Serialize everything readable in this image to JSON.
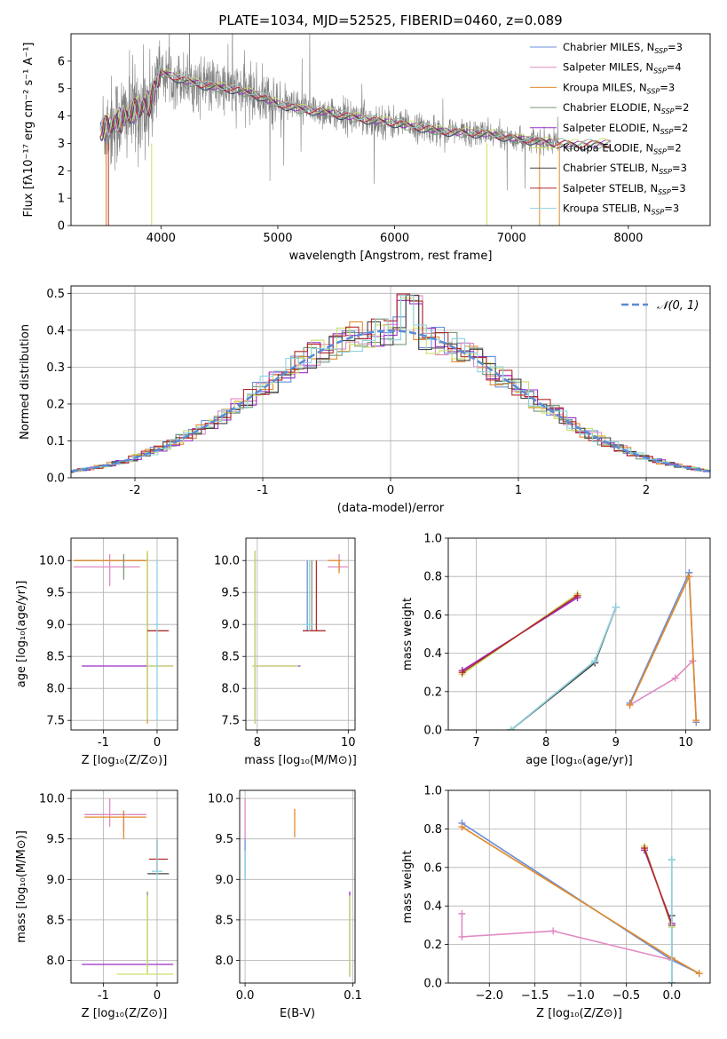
{
  "title": "PLATE=1034, MJD=52525, FIBERID=0460, z=0.089",
  "model_colors": [
    "#6a8fd8",
    "#e08ac4",
    "#e28a2b",
    "#7a9a78",
    "#9a2fc8",
    "#c9e06a",
    "#444444",
    "#b22a2a",
    "#8ed3e0"
  ],
  "chart_data": [
    {
      "id": "spectrum",
      "type": "line",
      "xlabel": "wavelength [Angstrom, rest frame]",
      "ylabel": "Flux [fλ10⁻¹⁷ erg cm⁻² s⁻¹ A⁻¹]",
      "xlim": [
        3230,
        8700
      ],
      "ylim": [
        0,
        7
      ],
      "xticks": [
        4000,
        5000,
        6000,
        7000,
        8000
      ],
      "yticks": [
        0,
        1,
        2,
        3,
        4,
        5,
        6
      ],
      "grid": false,
      "legend_position": "top-right",
      "legend": [
        {
          "label": "Chabrier MILES, N",
          "sub": "SSP",
          "suffix": "=3"
        },
        {
          "label": "Salpeter MILES, N",
          "sub": "SSP",
          "suffix": "=4"
        },
        {
          "label": "Kroupa MILES, N",
          "sub": "SSP",
          "suffix": "=3"
        },
        {
          "label": "Chabrier ELODIE, N",
          "sub": "SSP",
          "suffix": "=2"
        },
        {
          "label": "Salpeter ELODIE, N",
          "sub": "SSP",
          "suffix": "=2"
        },
        {
          "label": "Kroupa ELODIE, N",
          "sub": "SSP",
          "suffix": "=2"
        },
        {
          "label": "Chabrier STELIB, N",
          "sub": "SSP",
          "suffix": "=3"
        },
        {
          "label": "Salpeter STELIB, N",
          "sub": "SSP",
          "suffix": "=3"
        },
        {
          "label": "Kroupa STELIB, N",
          "sub": "SSP",
          "suffix": "=3"
        }
      ],
      "observed_color": "#808080",
      "model_curve": {
        "x": [
          3500,
          3700,
          3900,
          4000,
          4200,
          4400,
          4600,
          4800,
          5000,
          5200,
          5400,
          5600,
          5800,
          6000,
          6200,
          6400,
          6600,
          6800,
          7000,
          7200,
          7400,
          7600,
          7800
        ],
        "y": [
          3.5,
          4.0,
          4.5,
          5.6,
          5.3,
          5.1,
          5.0,
          4.8,
          4.45,
          4.25,
          4.15,
          4.0,
          3.85,
          3.75,
          3.6,
          3.45,
          3.4,
          3.35,
          3.2,
          3.1,
          3.0,
          2.95,
          3.0
        ]
      }
    },
    {
      "id": "residuals",
      "type": "bar",
      "xlabel": "(data-model)/error",
      "ylabel": "Normed distribution",
      "xlim": [
        -2.5,
        2.5
      ],
      "ylim": [
        0,
        0.52
      ],
      "xticks": [
        -2,
        -1,
        0,
        1,
        2
      ],
      "yticks": [
        0.0,
        0.1,
        0.2,
        0.3,
        0.4,
        0.5
      ],
      "grid": true,
      "legend_position": "top-right",
      "legend": [
        "𝒩(0, 1)"
      ],
      "gauss_color": "#5a8ad6",
      "bin_width": 0.1
    },
    {
      "id": "age-vs-Z",
      "type": "scatter",
      "xlabel": "Z [log₁₀(Z/Z⊙)]",
      "ylabel": "age  [log₁₀(age/yr)]",
      "xlim": [
        -1.6,
        0.38
      ],
      "ylim": [
        7.35,
        10.35
      ],
      "xticks": [
        -1,
        0
      ],
      "yticks": [
        7.5,
        8.0,
        8.5,
        9.0,
        9.5,
        10.0
      ],
      "grid": true,
      "points": [
        {
          "m": 0,
          "x": -0.18,
          "y": 10.0,
          "xe": [
            -1.55,
            -0.18
          ],
          "ye": [
            7.5,
            10.1
          ]
        },
        {
          "m": 1,
          "x": -0.88,
          "y": 9.9,
          "xe": [
            -1.55,
            -0.32
          ],
          "ye": [
            9.6,
            10.1
          ]
        },
        {
          "m": 2,
          "x": -0.18,
          "y": 10.0,
          "xe": [
            -1.55,
            -0.18
          ],
          "ye": [
            7.45,
            10.15
          ]
        },
        {
          "m": 3,
          "x": -0.62,
          "y": 10.0,
          "xe": [
            -0.62,
            -0.62
          ],
          "ye": [
            9.7,
            10.1
          ]
        },
        {
          "m": 4,
          "x": -0.62,
          "y": 8.35,
          "xe": [
            -1.4,
            0.3
          ],
          "ye": [
            8.35,
            8.35
          ]
        },
        {
          "m": 5,
          "x": -0.18,
          "y": 8.35,
          "xe": [
            -0.18,
            0.3
          ],
          "ye": [
            7.5,
            10.15
          ]
        },
        {
          "m": 6,
          "x": 0.0,
          "y": 8.9,
          "xe": [
            -0.18,
            0.2
          ],
          "ye": [
            8.9,
            8.9
          ]
        },
        {
          "m": 7,
          "x": 0.0,
          "y": 8.9,
          "xe": [
            -0.18,
            0.22
          ],
          "ye": [
            8.9,
            8.9
          ]
        },
        {
          "m": 8,
          "x": 0.0,
          "y": 9.0,
          "xe": [
            -0.05,
            0.05
          ],
          "ye": [
            7.5,
            10.0
          ]
        }
      ]
    },
    {
      "id": "age-vs-mass",
      "type": "scatter",
      "xlabel": "mass [log₁₀(M/M⊙)]",
      "ylabel": "",
      "xlim": [
        7.75,
        10.15
      ],
      "ylim": [
        7.35,
        10.35
      ],
      "xticks": [
        8,
        10
      ],
      "yticks": [
        7.5,
        8.0,
        8.5,
        9.0,
        9.5,
        10.0
      ],
      "grid": true,
      "points": [
        {
          "m": 0,
          "x": 9.1,
          "y": 10.0,
          "xe": [
            9.1,
            9.1
          ],
          "ye": [
            8.9,
            10.0
          ]
        },
        {
          "m": 1,
          "x": 9.8,
          "y": 9.9,
          "xe": [
            9.55,
            10.0
          ],
          "ye": [
            9.85,
            10.1
          ]
        },
        {
          "m": 2,
          "x": 9.8,
          "y": 10.0,
          "xe": [
            9.55,
            9.85
          ],
          "ye": [
            9.8,
            10.0
          ]
        },
        {
          "m": 3,
          "x": 9.2,
          "y": 10.0,
          "xe": [
            9.2,
            9.2
          ],
          "ye": [
            8.9,
            10.0
          ]
        },
        {
          "m": 4,
          "x": 7.95,
          "y": 8.35,
          "xe": [
            7.9,
            8.95
          ],
          "ye": [
            7.45,
            10.15
          ]
        },
        {
          "m": 5,
          "x": 7.95,
          "y": 8.35,
          "xe": [
            7.9,
            8.9
          ],
          "ye": [
            7.45,
            10.15
          ]
        },
        {
          "m": 6,
          "x": 9.3,
          "y": 8.9,
          "xe": [
            9.0,
            9.5
          ],
          "ye": [
            8.9,
            8.9
          ]
        },
        {
          "m": 7,
          "x": 9.3,
          "y": 8.9,
          "xe": [
            9.0,
            9.5
          ],
          "ye": [
            8.9,
            10.0
          ]
        },
        {
          "m": 8,
          "x": 9.15,
          "y": 9.0,
          "xe": [
            9.0,
            9.25
          ],
          "ye": [
            8.9,
            10.0
          ]
        }
      ]
    },
    {
      "id": "weight-vs-age",
      "type": "line",
      "xlabel": "age  [log₁₀(age/yr)]",
      "ylabel": "mass weight",
      "xlim": [
        6.6,
        10.35
      ],
      "ylim": [
        0.0,
        1.0
      ],
      "xticks": [
        7,
        8,
        9,
        10
      ],
      "yticks": [
        0.0,
        0.2,
        0.4,
        0.6,
        0.8,
        1.0
      ],
      "grid": true,
      "series": [
        {
          "m": 0,
          "x": [
            9.2,
            10.05,
            10.15
          ],
          "y": [
            0.14,
            0.82,
            0.04
          ]
        },
        {
          "m": 1,
          "x": [
            9.2,
            9.85,
            10.1
          ],
          "y": [
            0.13,
            0.27,
            0.36
          ]
        },
        {
          "m": 2,
          "x": [
            9.2,
            10.05,
            10.15
          ],
          "y": [
            0.13,
            0.8,
            0.05
          ]
        },
        {
          "m": 3,
          "x": [
            7.5,
            8.7,
            9.0
          ],
          "y": [
            0.0,
            0.36,
            0.64
          ]
        },
        {
          "m": 4,
          "x": [
            6.8,
            8.45
          ],
          "y": [
            0.31,
            0.69
          ]
        },
        {
          "m": 5,
          "x": [
            6.8,
            8.45
          ],
          "y": [
            0.29,
            0.71
          ]
        },
        {
          "m": 6,
          "x": [
            7.5,
            8.7,
            9.0
          ],
          "y": [
            0.0,
            0.35,
            0.64
          ]
        },
        {
          "m": 7,
          "x": [
            6.8,
            8.45
          ],
          "y": [
            0.3,
            0.7
          ]
        },
        {
          "m": 8,
          "x": [
            7.5,
            8.7,
            9.0
          ],
          "y": [
            0.0,
            0.36,
            0.64
          ]
        }
      ]
    },
    {
      "id": "mass-vs-Z",
      "type": "scatter",
      "xlabel": "Z [log₁₀(Z/Z⊙)]",
      "ylabel": "mass [log₁₀(M/M⊙)]",
      "xlim": [
        -1.6,
        0.38
      ],
      "ylim": [
        7.72,
        10.1
      ],
      "xticks": [
        -1,
        0
      ],
      "yticks": [
        8.0,
        8.5,
        9.0,
        9.5,
        10.0
      ],
      "grid": true,
      "points": [
        {
          "m": 0,
          "x": -0.62,
          "y": 9.8,
          "xe": [
            -1.35,
            -0.2
          ],
          "ye": [
            9.6,
            9.85
          ]
        },
        {
          "m": 1,
          "x": -0.88,
          "y": 9.8,
          "xe": [
            -1.35,
            -0.2
          ],
          "ye": [
            9.65,
            10.0
          ]
        },
        {
          "m": 2,
          "x": -0.62,
          "y": 9.77,
          "xe": [
            -1.35,
            -0.2
          ],
          "ye": [
            9.5,
            9.85
          ]
        },
        {
          "m": 3,
          "x": -0.18,
          "y": 8.8,
          "xe": [
            -0.18,
            -0.18
          ],
          "ye": [
            7.85,
            8.85
          ]
        },
        {
          "m": 4,
          "x": -0.18,
          "y": 7.95,
          "xe": [
            -1.4,
            0.3
          ],
          "ye": [
            7.95,
            7.95
          ]
        },
        {
          "m": 5,
          "x": -0.18,
          "y": 7.83,
          "xe": [
            -0.75,
            0.3
          ],
          "ye": [
            7.83,
            8.8
          ]
        },
        {
          "m": 6,
          "x": 0.0,
          "y": 9.07,
          "xe": [
            -0.18,
            0.22
          ],
          "ye": [
            9.07,
            9.07
          ]
        },
        {
          "m": 7,
          "x": 0.0,
          "y": 9.25,
          "xe": [
            -0.15,
            0.2
          ],
          "ye": [
            9.1,
            9.5
          ]
        },
        {
          "m": 8,
          "x": 0.0,
          "y": 9.1,
          "xe": [
            -0.1,
            0.1
          ],
          "ye": [
            9.0,
            9.5
          ]
        }
      ]
    },
    {
      "id": "mass-vs-ebv",
      "type": "scatter",
      "xlabel": "E(B-V)",
      "ylabel": "",
      "xlim": [
        -0.005,
        0.102
      ],
      "ylim": [
        7.72,
        10.1
      ],
      "xticks": [
        0.0,
        0.1
      ],
      "yticks": [
        8.0,
        8.5,
        9.0,
        9.5,
        10.0
      ],
      "grid": true,
      "points": [
        {
          "m": 0,
          "x": 0.0,
          "y": 9.2,
          "xe": [
            0.0,
            0.0
          ],
          "ye": [
            9.0,
            9.5
          ]
        },
        {
          "m": 1,
          "x": 0.0,
          "y": 9.8,
          "xe": [
            0.0,
            0.0
          ],
          "ye": [
            9.5,
            10.0
          ]
        },
        {
          "m": 2,
          "x": 0.046,
          "y": 9.7,
          "xe": [
            0.046,
            0.046
          ],
          "ye": [
            9.52,
            9.87
          ]
        },
        {
          "m": 4,
          "x": 0.097,
          "y": 8.3,
          "xe": [
            0.097,
            0.097
          ],
          "ye": [
            7.8,
            8.85
          ]
        },
        {
          "m": 5,
          "x": 0.097,
          "y": 8.3,
          "xe": [
            0.097,
            0.097
          ],
          "ye": [
            7.8,
            8.8
          ]
        },
        {
          "m": 8,
          "x": 0.0,
          "y": 9.1,
          "xe": [
            0.0,
            0.0
          ],
          "ye": [
            9.0,
            9.35
          ]
        }
      ]
    },
    {
      "id": "weight-vs-Z",
      "type": "line",
      "xlabel": "Z [log₁₀(Z/Z⊙)]",
      "ylabel": "mass weight",
      "xlim": [
        -2.45,
        0.42
      ],
      "ylim": [
        0.0,
        1.0
      ],
      "xticks": [
        -2.0,
        -1.5,
        -1.0,
        -0.5,
        0.0
      ],
      "yticks": [
        0.0,
        0.2,
        0.4,
        0.6,
        0.8,
        1.0
      ],
      "grid": true,
      "series": [
        {
          "m": 0,
          "x": [
            -2.3,
            0.0,
            0.3
          ],
          "y": [
            0.83,
            0.12,
            0.05
          ]
        },
        {
          "m": 1,
          "x": [
            -2.3,
            -2.3,
            -1.3,
            0.0
          ],
          "y": [
            0.36,
            0.24,
            0.27,
            0.12
          ]
        },
        {
          "m": 2,
          "x": [
            -2.3,
            0.0,
            0.3
          ],
          "y": [
            0.81,
            0.13,
            0.05
          ]
        },
        {
          "m": 3,
          "x": [
            0.0,
            0.0
          ],
          "y": [
            0.64,
            0.0
          ]
        },
        {
          "m": 4,
          "x": [
            -0.3,
            0.0
          ],
          "y": [
            0.69,
            0.31
          ]
        },
        {
          "m": 5,
          "x": [
            -0.3,
            0.0
          ],
          "y": [
            0.71,
            0.29
          ]
        },
        {
          "m": 6,
          "x": [
            0.0,
            0.0
          ],
          "y": [
            0.35,
            0.0
          ]
        },
        {
          "m": 7,
          "x": [
            -0.3,
            0.0
          ],
          "y": [
            0.7,
            0.3
          ]
        },
        {
          "m": 8,
          "x": [
            0.0,
            0.0
          ],
          "y": [
            0.64,
            0.0
          ]
        }
      ]
    }
  ]
}
